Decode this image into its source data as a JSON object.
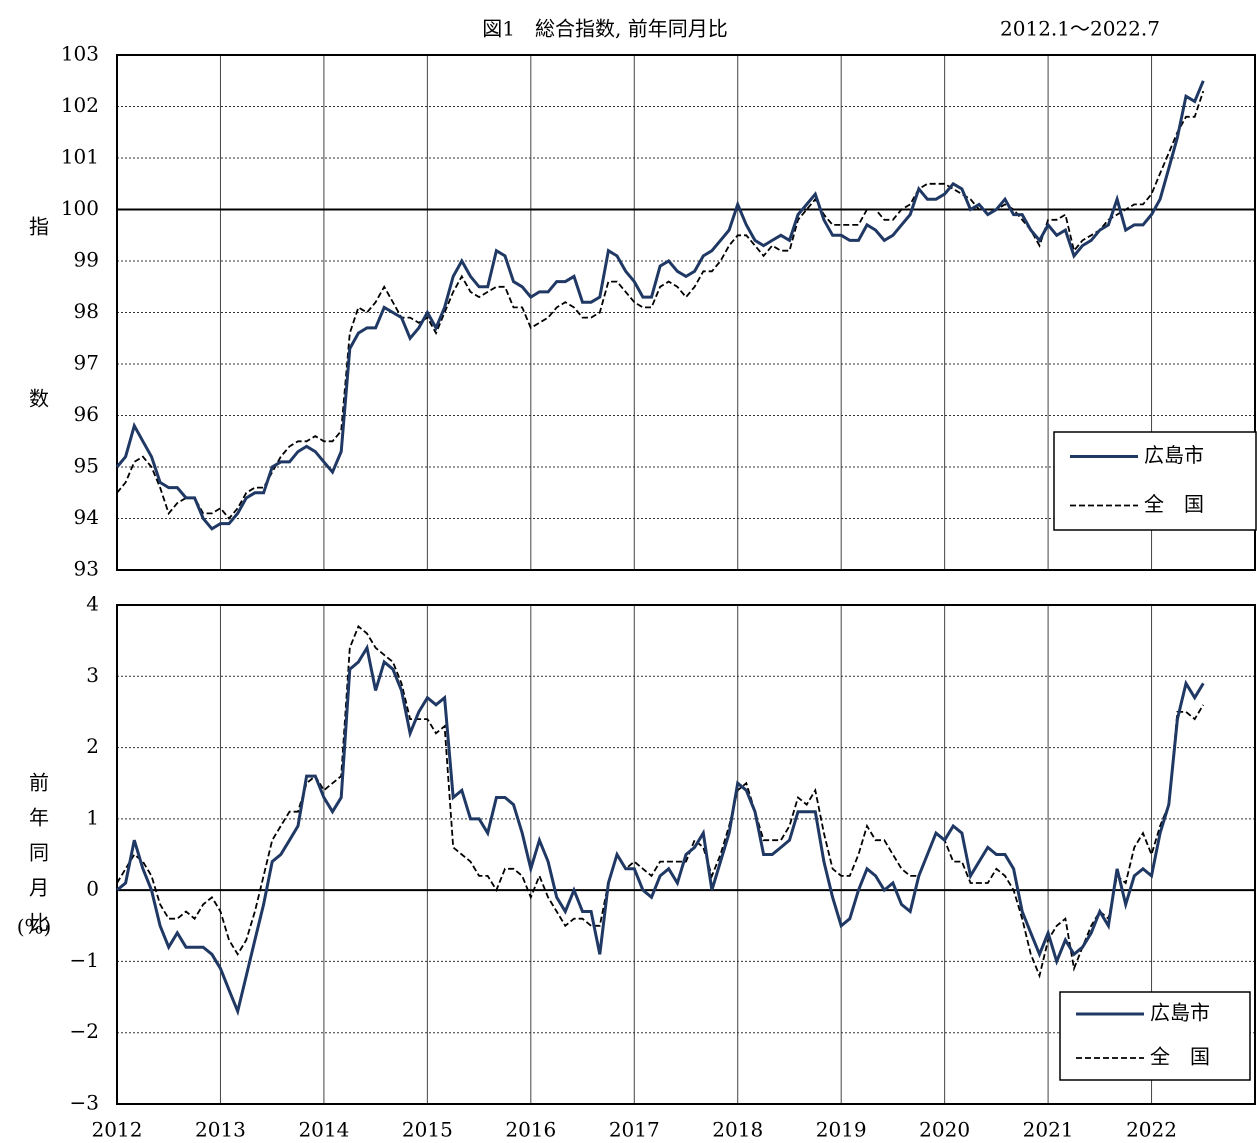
{
  "chart_data": [
    {
      "type": "line",
      "title": "図1　総合指数, 前年同月比",
      "subtitle": "2012.1～2022.7",
      "y_label": "指数",
      "xlim": [
        2012,
        2023
      ],
      "ylim": [
        93,
        103
      ],
      "yticks": [
        93,
        94,
        95,
        96,
        97,
        98,
        99,
        100,
        101,
        102,
        103
      ],
      "baseline": 100,
      "grid": true,
      "legend": "lower right",
      "x": [
        2012,
        2012.083,
        2012.167,
        2012.25,
        2012.333,
        2012.417,
        2012.5,
        2012.583,
        2012.667,
        2012.75,
        2012.833,
        2012.917,
        2013,
        2013.083,
        2013.167,
        2013.25,
        2013.333,
        2013.417,
        2013.5,
        2013.583,
        2013.667,
        2013.75,
        2013.833,
        2013.917,
        2014,
        2014.083,
        2014.167,
        2014.25,
        2014.333,
        2014.417,
        2014.5,
        2014.583,
        2014.667,
        2014.75,
        2014.833,
        2014.917,
        2015,
        2015.083,
        2015.167,
        2015.25,
        2015.333,
        2015.417,
        2015.5,
        2015.583,
        2015.667,
        2015.75,
        2015.833,
        2015.917,
        2016,
        2016.083,
        2016.167,
        2016.25,
        2016.333,
        2016.417,
        2016.5,
        2016.583,
        2016.667,
        2016.75,
        2016.833,
        2016.917,
        2017,
        2017.083,
        2017.167,
        2017.25,
        2017.333,
        2017.417,
        2017.5,
        2017.583,
        2017.667,
        2017.75,
        2017.833,
        2017.917,
        2018,
        2018.083,
        2018.167,
        2018.25,
        2018.333,
        2018.417,
        2018.5,
        2018.583,
        2018.667,
        2018.75,
        2018.833,
        2018.917,
        2019,
        2019.083,
        2019.167,
        2019.25,
        2019.333,
        2019.417,
        2019.5,
        2019.583,
        2019.667,
        2019.75,
        2019.833,
        2019.917,
        2020,
        2020.083,
        2020.167,
        2020.25,
        2020.333,
        2020.417,
        2020.5,
        2020.583,
        2020.667,
        2020.75,
        2020.833,
        2020.917,
        2021,
        2021.083,
        2021.167,
        2021.25,
        2021.333,
        2021.417,
        2021.5,
        2021.583,
        2021.667,
        2021.75,
        2021.833,
        2021.917,
        2022,
        2022.083,
        2022.167,
        2022.25,
        2022.333,
        2022.417,
        2022.5
      ],
      "series": [
        {
          "name": "広島市",
          "color": "#1f3864",
          "dash": false,
          "values": [
            95.0,
            95.2,
            95.8,
            95.5,
            95.2,
            94.7,
            94.6,
            94.6,
            94.4,
            94.4,
            94.0,
            93.8,
            93.9,
            93.9,
            94.1,
            94.4,
            94.5,
            94.5,
            95.0,
            95.1,
            95.1,
            95.3,
            95.4,
            95.3,
            95.1,
            94.9,
            95.3,
            97.3,
            97.6,
            97.7,
            97.7,
            98.1,
            98.0,
            97.9,
            97.5,
            97.7,
            98.0,
            97.7,
            98.1,
            98.7,
            99.0,
            98.7,
            98.5,
            98.5,
            99.2,
            99.1,
            98.6,
            98.5,
            98.3,
            98.4,
            98.4,
            98.6,
            98.6,
            98.7,
            98.2,
            98.2,
            98.3,
            99.2,
            99.1,
            98.8,
            98.6,
            98.3,
            98.3,
            98.9,
            99.0,
            98.8,
            98.7,
            98.8,
            99.1,
            99.2,
            99.4,
            99.6,
            100.1,
            99.7,
            99.4,
            99.3,
            99.4,
            99.5,
            99.4,
            99.9,
            100.1,
            100.3,
            99.8,
            99.5,
            99.5,
            99.4,
            99.4,
            99.7,
            99.6,
            99.4,
            99.5,
            99.7,
            99.9,
            100.4,
            100.2,
            100.2,
            100.3,
            100.5,
            100.4,
            100.0,
            100.1,
            99.9,
            100.0,
            100.2,
            99.9,
            99.9,
            99.6,
            99.4,
            99.7,
            99.5,
            99.6,
            99.1,
            99.3,
            99.4,
            99.6,
            99.7,
            100.2,
            99.6,
            99.7,
            99.7,
            99.9,
            100.2,
            100.8,
            101.4,
            102.2,
            102.1,
            102.5
          ]
        },
        {
          "name": "全　国",
          "color": "#000000",
          "dash": true,
          "values": [
            94.5,
            94.7,
            95.1,
            95.2,
            95.0,
            94.6,
            94.1,
            94.3,
            94.4,
            94.4,
            94.1,
            94.1,
            94.2,
            94.0,
            94.2,
            94.5,
            94.6,
            94.6,
            94.9,
            95.2,
            95.4,
            95.5,
            95.5,
            95.6,
            95.5,
            95.5,
            95.7,
            97.6,
            98.1,
            98.0,
            98.2,
            98.5,
            98.2,
            97.9,
            97.9,
            97.8,
            97.9,
            97.6,
            98.0,
            98.4,
            98.7,
            98.4,
            98.3,
            98.4,
            98.5,
            98.5,
            98.1,
            98.1,
            97.7,
            97.8,
            97.9,
            98.1,
            98.2,
            98.1,
            97.9,
            97.9,
            98.0,
            98.6,
            98.6,
            98.4,
            98.2,
            98.1,
            98.1,
            98.5,
            98.6,
            98.5,
            98.3,
            98.5,
            98.8,
            98.8,
            99.0,
            99.3,
            99.5,
            99.5,
            99.3,
            99.1,
            99.3,
            99.2,
            99.2,
            99.8,
            100.0,
            100.2,
            99.9,
            99.7,
            99.7,
            99.7,
            99.7,
            100.0,
            100.0,
            99.8,
            99.8,
            100.0,
            100.1,
            100.4,
            100.5,
            100.5,
            100.5,
            100.4,
            100.3,
            100.2,
            100.0,
            100.0,
            100.0,
            100.1,
            100.0,
            99.8,
            99.6,
            99.3,
            99.8,
            99.8,
            99.9,
            99.2,
            99.4,
            99.5,
            99.6,
            99.8,
            99.9,
            100.0,
            100.1,
            100.1,
            100.3,
            100.7,
            101.1,
            101.5,
            101.8,
            101.8,
            102.3
          ]
        }
      ]
    },
    {
      "type": "line",
      "y_label": "前年同月比",
      "y_unit": "(%)",
      "xlim": [
        2012,
        2023
      ],
      "xticks": [
        2012,
        2013,
        2014,
        2015,
        2016,
        2017,
        2018,
        2019,
        2020,
        2021,
        2022
      ],
      "ylim": [
        -3,
        4
      ],
      "yticks": [
        {
          "value": -3,
          "label": "−3"
        },
        {
          "value": -2,
          "label": "−2"
        },
        {
          "value": -1,
          "label": "−1"
        },
        0,
        1,
        2,
        3,
        4
      ],
      "baseline": 0,
      "grid": true,
      "legend": "lower right",
      "x": [
        2012,
        2012.083,
        2012.167,
        2012.25,
        2012.333,
        2012.417,
        2012.5,
        2012.583,
        2012.667,
        2012.75,
        2012.833,
        2012.917,
        2013,
        2013.083,
        2013.167,
        2013.25,
        2013.333,
        2013.417,
        2013.5,
        2013.583,
        2013.667,
        2013.75,
        2013.833,
        2013.917,
        2014,
        2014.083,
        2014.167,
        2014.25,
        2014.333,
        2014.417,
        2014.5,
        2014.583,
        2014.667,
        2014.75,
        2014.833,
        2014.917,
        2015,
        2015.083,
        2015.167,
        2015.25,
        2015.333,
        2015.417,
        2015.5,
        2015.583,
        2015.667,
        2015.75,
        2015.833,
        2015.917,
        2016,
        2016.083,
        2016.167,
        2016.25,
        2016.333,
        2016.417,
        2016.5,
        2016.583,
        2016.667,
        2016.75,
        2016.833,
        2016.917,
        2017,
        2017.083,
        2017.167,
        2017.25,
        2017.333,
        2017.417,
        2017.5,
        2017.583,
        2017.667,
        2017.75,
        2017.833,
        2017.917,
        2018,
        2018.083,
        2018.167,
        2018.25,
        2018.333,
        2018.417,
        2018.5,
        2018.583,
        2018.667,
        2018.75,
        2018.833,
        2018.917,
        2019,
        2019.083,
        2019.167,
        2019.25,
        2019.333,
        2019.417,
        2019.5,
        2019.583,
        2019.667,
        2019.75,
        2019.833,
        2019.917,
        2020,
        2020.083,
        2020.167,
        2020.25,
        2020.333,
        2020.417,
        2020.5,
        2020.583,
        2020.667,
        2020.75,
        2020.833,
        2020.917,
        2021,
        2021.083,
        2021.167,
        2021.25,
        2021.333,
        2021.417,
        2021.5,
        2021.583,
        2021.667,
        2021.75,
        2021.833,
        2021.917,
        2022,
        2022.083,
        2022.167,
        2022.25,
        2022.333,
        2022.417,
        2022.5
      ],
      "series": [
        {
          "name": "広島市",
          "color": "#1f3864",
          "dash": false,
          "values": [
            0.0,
            0.1,
            0.7,
            0.3,
            0.0,
            -0.5,
            -0.8,
            -0.6,
            -0.8,
            -0.8,
            -0.8,
            -0.9,
            -1.1,
            -1.4,
            -1.7,
            -1.2,
            -0.7,
            -0.2,
            0.4,
            0.5,
            0.7,
            0.9,
            1.6,
            1.6,
            1.3,
            1.1,
            1.3,
            3.1,
            3.2,
            3.4,
            2.8,
            3.2,
            3.1,
            2.8,
            2.2,
            2.5,
            2.7,
            2.6,
            2.7,
            1.3,
            1.4,
            1.0,
            1.0,
            0.8,
            1.3,
            1.3,
            1.2,
            0.8,
            0.3,
            0.7,
            0.4,
            -0.1,
            -0.3,
            0.0,
            -0.3,
            -0.3,
            -0.9,
            0.1,
            0.5,
            0.3,
            0.3,
            0.0,
            -0.1,
            0.2,
            0.3,
            0.1,
            0.5,
            0.6,
            0.8,
            0.0,
            0.4,
            0.8,
            1.5,
            1.4,
            1.1,
            0.5,
            0.5,
            0.6,
            0.7,
            1.1,
            1.1,
            1.1,
            0.4,
            -0.1,
            -0.5,
            -0.4,
            0.0,
            0.3,
            0.2,
            0.0,
            0.1,
            -0.2,
            -0.3,
            0.2,
            0.5,
            0.8,
            0.7,
            0.9,
            0.8,
            0.2,
            0.4,
            0.6,
            0.5,
            0.5,
            0.3,
            -0.3,
            -0.6,
            -0.9,
            -0.6,
            -1.0,
            -0.7,
            -0.9,
            -0.8,
            -0.6,
            -0.3,
            -0.5,
            0.3,
            -0.2,
            0.2,
            0.3,
            0.2,
            0.8,
            1.2,
            2.4,
            2.9,
            2.7,
            2.9
          ]
        },
        {
          "name": "全　国",
          "color": "#000000",
          "dash": true,
          "values": [
            0.1,
            0.3,
            0.5,
            0.4,
            0.2,
            -0.2,
            -0.4,
            -0.4,
            -0.3,
            -0.4,
            -0.2,
            -0.1,
            -0.3,
            -0.7,
            -0.9,
            -0.7,
            -0.3,
            0.2,
            0.7,
            0.9,
            1.1,
            1.1,
            1.5,
            1.6,
            1.4,
            1.5,
            1.6,
            3.4,
            3.7,
            3.6,
            3.4,
            3.3,
            3.2,
            2.9,
            2.4,
            2.4,
            2.4,
            2.2,
            2.3,
            0.6,
            0.5,
            0.4,
            0.2,
            0.2,
            0.0,
            0.3,
            0.3,
            0.2,
            -0.1,
            0.2,
            -0.1,
            -0.3,
            -0.5,
            -0.4,
            -0.4,
            -0.5,
            -0.5,
            0.1,
            0.5,
            0.3,
            0.4,
            0.3,
            0.2,
            0.4,
            0.4,
            0.4,
            0.4,
            0.7,
            0.6,
            0.2,
            0.5,
            0.9,
            1.4,
            1.5,
            1.1,
            0.7,
            0.7,
            0.7,
            0.9,
            1.3,
            1.2,
            1.4,
            0.8,
            0.3,
            0.2,
            0.2,
            0.5,
            0.9,
            0.7,
            0.7,
            0.5,
            0.3,
            0.2,
            0.2,
            0.5,
            0.8,
            0.7,
            0.4,
            0.4,
            0.1,
            0.1,
            0.1,
            0.3,
            0.2,
            0.0,
            -0.4,
            -0.9,
            -1.2,
            -0.7,
            -0.5,
            -0.4,
            -1.1,
            -0.8,
            -0.5,
            -0.3,
            -0.4,
            0.2,
            0.1,
            0.6,
            0.8,
            0.5,
            0.9,
            1.2,
            2.5,
            2.5,
            2.4,
            2.6
          ]
        }
      ]
    }
  ]
}
